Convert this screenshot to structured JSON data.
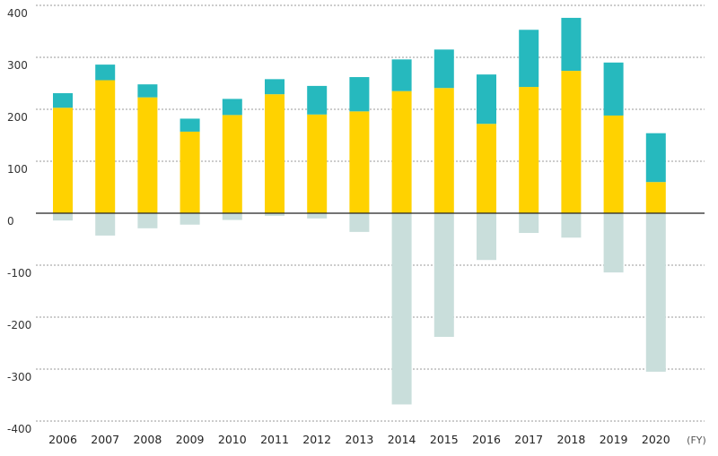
{
  "chart_data": {
    "type": "bar",
    "stacked": true,
    "categories": [
      "2006",
      "2007",
      "2008",
      "2009",
      "2010",
      "2011",
      "2012",
      "2013",
      "2014",
      "2015",
      "2016",
      "2017",
      "2018",
      "2019",
      "2020"
    ],
    "x_unit_label": "(FY)",
    "ylim": [
      -400,
      400
    ],
    "yticks": [
      400,
      300,
      200,
      100,
      0,
      -100,
      -200,
      -300,
      -400
    ],
    "ytick_labels": [
      "400",
      "300",
      "200",
      "100",
      "0",
      "-100",
      "-200",
      "-300",
      "-400"
    ],
    "grid": true,
    "series": [
      {
        "color": "#FFD200",
        "values": [
          203,
          256,
          223,
          157,
          189,
          229,
          190,
          196,
          235,
          241,
          172,
          243,
          274,
          188,
          60
        ]
      },
      {
        "color": "#26B9BE",
        "values": [
          28,
          30,
          25,
          25,
          31,
          29,
          55,
          66,
          61,
          74,
          95,
          110,
          102,
          102,
          94
        ]
      },
      {
        "color": "#C9DEDB",
        "values": [
          -14,
          -43,
          -29,
          -22,
          -13,
          -5,
          -10,
          -36,
          -368,
          -238,
          -90,
          -38,
          -47,
          -114,
          -305
        ]
      }
    ]
  }
}
